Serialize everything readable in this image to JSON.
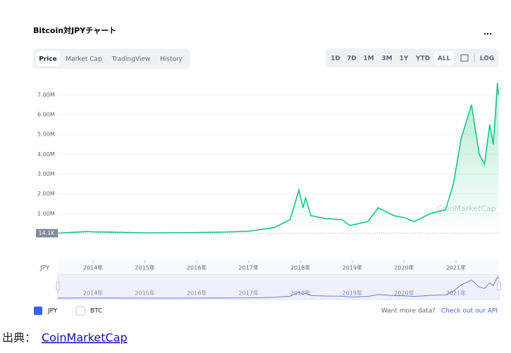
{
  "title": "Bitcoin対JPYチャート",
  "menu": "...",
  "tabs": [
    "Price",
    "Market Cap",
    "TradingView",
    "History"
  ],
  "ranges": [
    "1D",
    "7D",
    "1M",
    "3M",
    "1Y",
    "YTD",
    "ALL"
  ],
  "log": "LOG",
  "watermark": "CoinMarketCap",
  "legend": [
    "JPY",
    "BTC"
  ],
  "api": {
    "text": "Want more data?",
    "link": "Check out our API"
  },
  "footer": {
    "prefix": "出典：",
    "link": "CoinMarketCap"
  },
  "chart_data": {
    "type": "line",
    "x_label": "JPY",
    "current_label": "14.1K",
    "xlim": [
      2013.32,
      2021.83
    ],
    "xticks": [
      {
        "value": 2014,
        "label": "2014年"
      },
      {
        "value": 2015,
        "label": "2015年"
      },
      {
        "value": 2016,
        "label": "2016年"
      },
      {
        "value": 2017,
        "label": "2017年"
      },
      {
        "value": 2018,
        "label": "2018年"
      },
      {
        "value": 2019,
        "label": "2019年"
      },
      {
        "value": 2020,
        "label": "2020年"
      },
      {
        "value": 2021,
        "label": "2021年"
      }
    ],
    "ylim": [
      0,
      7600000
    ],
    "yticks": [
      {
        "value": 1000000,
        "label": "1.00M"
      },
      {
        "value": 2000000,
        "label": "2.00M"
      },
      {
        "value": 3000000,
        "label": "3.00M"
      },
      {
        "value": 4000000,
        "label": "4.00M"
      },
      {
        "value": 5000000,
        "label": "5.00M"
      },
      {
        "value": 6000000,
        "label": "6.00M"
      },
      {
        "value": 7000000,
        "label": "7.00M"
      }
    ],
    "grid": true,
    "series": [
      {
        "name": "JPY",
        "color": "#16c784",
        "x": [
          2013.32,
          2013.9,
          2014.0,
          2014.5,
          2015.0,
          2016.0,
          2016.5,
          2017.0,
          2017.5,
          2017.8,
          2017.97,
          2018.05,
          2018.1,
          2018.2,
          2018.5,
          2018.8,
          2018.95,
          2019.3,
          2019.5,
          2019.8,
          2020.0,
          2020.2,
          2020.5,
          2020.8,
          2020.95,
          2021.1,
          2021.3,
          2021.45,
          2021.55,
          2021.65,
          2021.72,
          2021.8,
          2021.82
        ],
        "values": [
          14100,
          100000,
          80000,
          60000,
          30000,
          45000,
          70000,
          110000,
          300000,
          700000,
          2200000,
          1300000,
          1800000,
          900000,
          750000,
          700000,
          400000,
          600000,
          1300000,
          900000,
          800000,
          600000,
          1000000,
          1200000,
          2500000,
          4800000,
          6500000,
          4000000,
          3500000,
          5500000,
          4500000,
          7600000,
          7000000
        ]
      }
    ]
  }
}
